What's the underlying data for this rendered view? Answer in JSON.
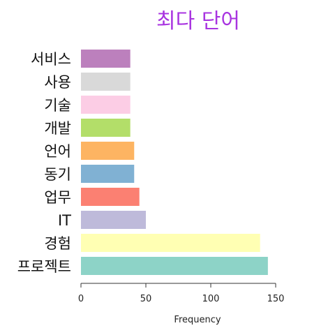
{
  "chart_data": {
    "type": "bar",
    "orientation": "horizontal",
    "title": "최다 단어",
    "xlabel": "Frequency",
    "ylabel": "",
    "xlim": [
      0,
      150
    ],
    "xticks": [
      0,
      50,
      100,
      150
    ],
    "grid": false,
    "categories": [
      "서비스",
      "사용",
      "기술",
      "개발",
      "언어",
      "동기",
      "업무",
      "IT",
      "경험",
      "프로젝트"
    ],
    "values": [
      38,
      38,
      38,
      38,
      41,
      41,
      45,
      50,
      138,
      144
    ],
    "colors": [
      "#bc80bd",
      "#d9d9d9",
      "#fccde5",
      "#b3de69",
      "#fdb462",
      "#80b1d3",
      "#fb8072",
      "#bebada",
      "#ffffb3",
      "#8dd3c7"
    ]
  }
}
